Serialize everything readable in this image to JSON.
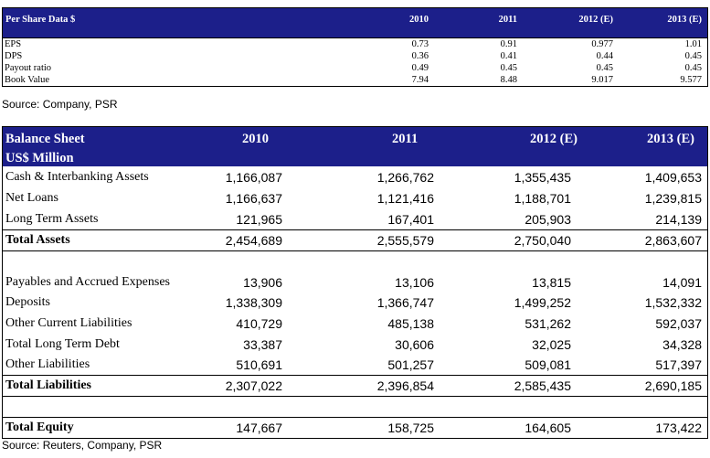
{
  "per_share": {
    "header": {
      "label": "Per Share Data $",
      "y1": "2010",
      "y2": "2011",
      "y3": "2012 (E)",
      "y4": "2013 (E)"
    },
    "rows": [
      {
        "label": "EPS",
        "v1": "0.73",
        "v2": "0.91",
        "v3": "0.977",
        "v4": "1.01"
      },
      {
        "label": "DPS",
        "v1": "0.36",
        "v2": "0.41",
        "v3": "0.44",
        "v4": "0.45"
      },
      {
        "label": "Payout ratio",
        "v1": "0.49",
        "v2": "0.45",
        "v3": "0.45",
        "v4": "0.45"
      },
      {
        "label": "Book Value",
        "v1": "7.94",
        "v2": "8.48",
        "v3": "9.017",
        "v4": "9.577"
      }
    ],
    "source": "Source: Company, PSR"
  },
  "balance": {
    "header": {
      "title": "Balance Sheet",
      "subtitle": "US$ Million",
      "y1": "2010",
      "y2": "2011",
      "y3": "2012 (E)",
      "y4": "2013 (E)"
    },
    "rows": [
      {
        "label": "Cash & Interbanking Assets",
        "v1": "1,166,087",
        "v2": "1,266,762",
        "v3": "1,355,435",
        "v4": "1,409,653"
      },
      {
        "label": "Net Loans",
        "v1": "1,166,637",
        "v2": "1,121,416",
        "v3": "1,188,701",
        "v4": "1,239,815"
      },
      {
        "label": "Long Term Assets",
        "v1": "121,965",
        "v2": "167,401",
        "v3": "205,903",
        "v4": "214,139"
      },
      {
        "label": "Total Assets",
        "v1": "2,454,689",
        "v2": "2,555,579",
        "v3": "2,750,040",
        "v4": "2,863,607"
      },
      {
        "label": "Payables and Accrued Expenses",
        "v1": "13,906",
        "v2": "13,106",
        "v3": "13,815",
        "v4": "14,091"
      },
      {
        "label": "Deposits",
        "v1": "1,338,309",
        "v2": "1,366,747",
        "v3": "1,499,252",
        "v4": "1,532,332"
      },
      {
        "label": "Other Current Liabilities",
        "v1": "410,729",
        "v2": "485,138",
        "v3": "531,262",
        "v4": "592,037"
      },
      {
        "label": "Total Long Term Debt",
        "v1": "33,387",
        "v2": "30,606",
        "v3": "32,025",
        "v4": "34,328"
      },
      {
        "label": "Other Liabilities",
        "v1": "510,691",
        "v2": "501,257",
        "v3": "509,081",
        "v4": "517,397"
      },
      {
        "label": "Total Liabilities",
        "v1": "2,307,022",
        "v2": "2,396,854",
        "v3": "2,585,435",
        "v4": "2,690,185"
      },
      {
        "label": "Total Equity",
        "v1": "147,667",
        "v2": "158,725",
        "v3": "164,605",
        "v4": "173,422"
      }
    ],
    "source": "Source: Reuters, Company, PSR"
  }
}
